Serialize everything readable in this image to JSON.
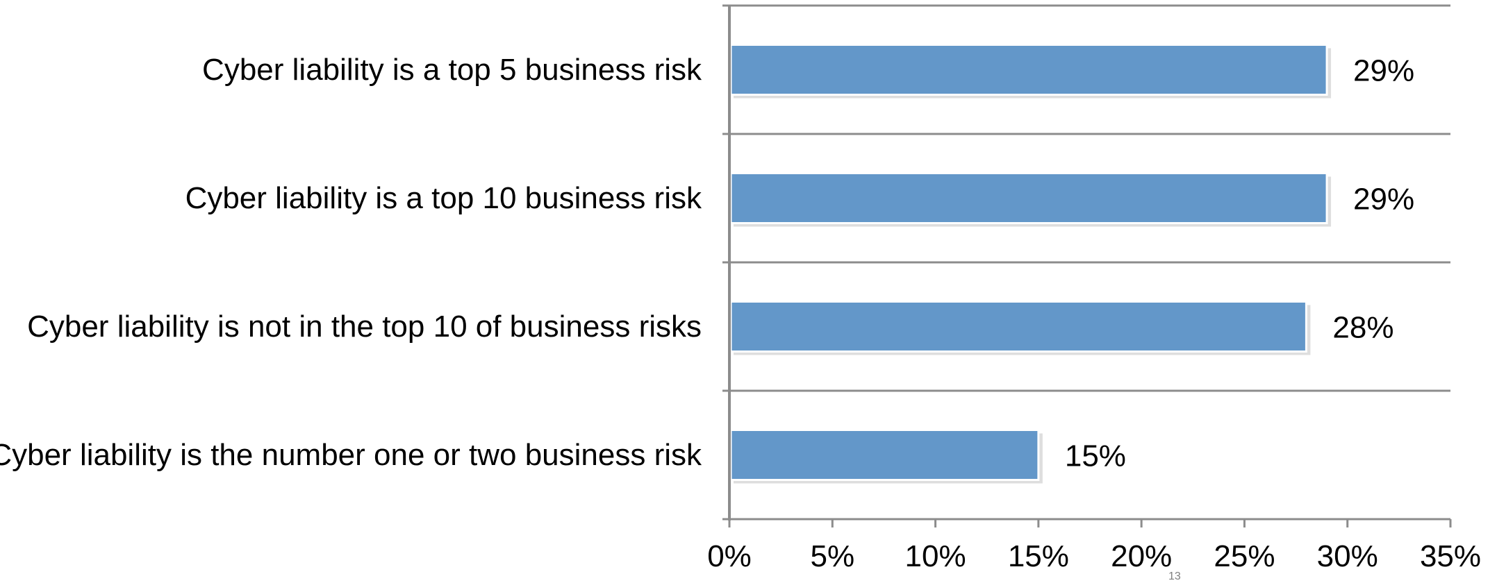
{
  "chart_data": {
    "type": "bar",
    "orientation": "horizontal",
    "categories": [
      "Cyber liability is a top 5 business risk",
      "Cyber liability is a top 10 business risk",
      "Cyber liability is not in the top 10 of business risks",
      "Cyber liability is the number one or two business risk"
    ],
    "values": [
      29,
      29,
      28,
      15
    ],
    "data_labels": [
      "29%",
      "29%",
      "28%",
      "15%"
    ],
    "xlim": [
      0,
      35
    ],
    "xticks": [
      "0%",
      "5%",
      "10%",
      "15%",
      "20%",
      "25%",
      "30%",
      "35%"
    ],
    "title": "",
    "xlabel": "",
    "ylabel": "",
    "grid": "horizontal separators between categories",
    "bar_color": "#6397C9",
    "axis_color": "#8C8C8C"
  },
  "page_number": "13"
}
